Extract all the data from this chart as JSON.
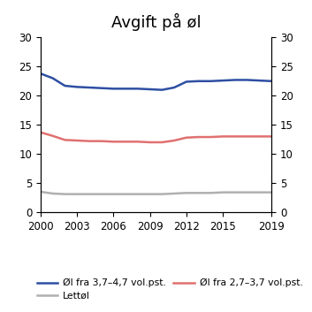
{
  "title": "Avgift på øl",
  "years": [
    2000,
    2001,
    2002,
    2003,
    2004,
    2005,
    2006,
    2007,
    2008,
    2009,
    2010,
    2011,
    2012,
    2013,
    2014,
    2015,
    2016,
    2017,
    2018,
    2019
  ],
  "blue": [
    23.8,
    23.0,
    21.7,
    21.5,
    21.4,
    21.3,
    21.2,
    21.2,
    21.2,
    21.1,
    21.0,
    21.4,
    22.4,
    22.5,
    22.5,
    22.6,
    22.7,
    22.7,
    22.6,
    22.5
  ],
  "red": [
    13.7,
    13.1,
    12.4,
    12.3,
    12.2,
    12.2,
    12.1,
    12.1,
    12.1,
    12.0,
    12.0,
    12.3,
    12.8,
    12.9,
    12.9,
    13.0,
    13.0,
    13.0,
    13.0,
    13.0
  ],
  "gray": [
    3.5,
    3.2,
    3.1,
    3.1,
    3.1,
    3.1,
    3.1,
    3.1,
    3.1,
    3.1,
    3.1,
    3.2,
    3.3,
    3.3,
    3.3,
    3.4,
    3.4,
    3.4,
    3.4,
    3.4
  ],
  "blue_color": "#2e4fa3",
  "red_color": "#e07070",
  "gray_color": "#b0b0b0",
  "ylim": [
    0,
    30
  ],
  "yticks": [
    0,
    5,
    10,
    15,
    20,
    25,
    30
  ],
  "xticks": [
    2000,
    2003,
    2006,
    2009,
    2012,
    2015,
    2019
  ],
  "legend_blue": "Øl fra 3,7–4,7 vol.pst.",
  "legend_red": "Øl fra 2,7–3,7 vol.pst.",
  "legend_gray": "Lettøl",
  "line_width": 1.8,
  "title_fontsize": 13
}
